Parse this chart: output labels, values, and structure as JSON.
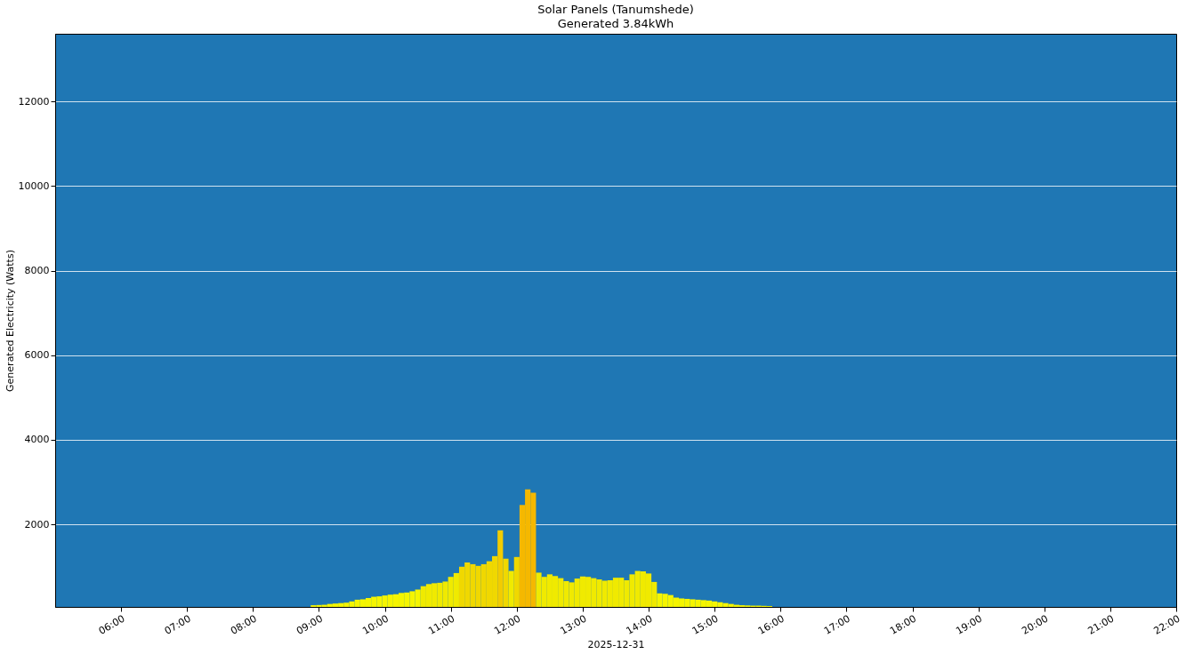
{
  "chart_data": {
    "type": "bar",
    "title": "Solar Panels (Tanumshede)",
    "subtitle": "Generated 3.84kWh",
    "xlabel": "2025-12-31",
    "ylabel": "Generated Electricity (Watts)",
    "x": [
      "2025-12-31T08:55",
      "2025-12-31T09:00",
      "2025-12-31T09:05",
      "2025-12-31T09:10",
      "2025-12-31T09:15",
      "2025-12-31T09:20",
      "2025-12-31T09:25",
      "2025-12-31T09:30",
      "2025-12-31T09:35",
      "2025-12-31T09:40",
      "2025-12-31T09:45",
      "2025-12-31T09:50",
      "2025-12-31T09:55",
      "2025-12-31T10:00",
      "2025-12-31T10:05",
      "2025-12-31T10:10",
      "2025-12-31T10:15",
      "2025-12-31T10:20",
      "2025-12-31T10:25",
      "2025-12-31T10:30",
      "2025-12-31T10:35",
      "2025-12-31T10:40",
      "2025-12-31T10:45",
      "2025-12-31T10:50",
      "2025-12-31T10:55",
      "2025-12-31T11:00",
      "2025-12-31T11:05",
      "2025-12-31T11:10",
      "2025-12-31T11:15",
      "2025-12-31T11:20",
      "2025-12-31T11:25",
      "2025-12-31T11:30",
      "2025-12-31T11:35",
      "2025-12-31T11:40",
      "2025-12-31T11:45",
      "2025-12-31T11:50",
      "2025-12-31T11:55",
      "2025-12-31T12:00",
      "2025-12-31T12:05",
      "2025-12-31T12:10",
      "2025-12-31T12:15",
      "2025-12-31T12:20",
      "2025-12-31T12:25",
      "2025-12-31T12:30",
      "2025-12-31T12:35",
      "2025-12-31T12:40",
      "2025-12-31T12:45",
      "2025-12-31T12:50",
      "2025-12-31T12:55",
      "2025-12-31T13:00",
      "2025-12-31T13:05",
      "2025-12-31T13:10",
      "2025-12-31T13:15",
      "2025-12-31T13:20",
      "2025-12-31T13:25",
      "2025-12-31T13:30",
      "2025-12-31T13:35",
      "2025-12-31T13:40",
      "2025-12-31T13:45",
      "2025-12-31T13:50",
      "2025-12-31T13:55",
      "2025-12-31T14:00",
      "2025-12-31T14:05",
      "2025-12-31T14:10",
      "2025-12-31T14:15",
      "2025-12-31T14:20",
      "2025-12-31T14:25",
      "2025-12-31T14:30",
      "2025-12-31T14:35",
      "2025-12-31T14:40",
      "2025-12-31T14:45",
      "2025-12-31T14:50",
      "2025-12-31T14:55",
      "2025-12-31T15:00",
      "2025-12-31T15:05",
      "2025-12-31T15:10",
      "2025-12-31T15:15",
      "2025-12-31T15:20",
      "2025-12-31T15:25",
      "2025-12-31T15:30",
      "2025-12-31T15:35",
      "2025-12-31T15:40",
      "2025-12-31T15:45",
      "2025-12-31T15:50"
    ],
    "values": [
      90,
      95,
      100,
      120,
      130,
      140,
      150,
      180,
      220,
      230,
      260,
      290,
      300,
      320,
      340,
      350,
      380,
      390,
      420,
      460,
      540,
      590,
      610,
      620,
      650,
      760,
      850,
      1000,
      1100,
      1060,
      1020,
      1060,
      1130,
      1250,
      1860,
      1190,
      900,
      1230,
      2460,
      2830,
      2750,
      860,
      760,
      820,
      780,
      730,
      660,
      630,
      720,
      770,
      760,
      730,
      700,
      670,
      680,
      740,
      740,
      680,
      820,
      900,
      890,
      840,
      640,
      370,
      360,
      330,
      270,
      250,
      240,
      230,
      220,
      210,
      200,
      180,
      160,
      140,
      120,
      100,
      90,
      85,
      80,
      80,
      75,
      70
    ],
    "colors": [
      "#f5f500",
      "#f5f500",
      "#f5f500",
      "#f5f500",
      "#f5f500",
      "#f5f500",
      "#f5f500",
      "#f5f500",
      "#f5f500",
      "#f5f500",
      "#f5f500",
      "#f5f500",
      "#f5f500",
      "#f5f500",
      "#f5f500",
      "#f5f500",
      "#f5f500",
      "#f5f500",
      "#f5f500",
      "#f5f500",
      "#f0ea00",
      "#f0ea00",
      "#f0ea00",
      "#f0ea00",
      "#f0ea00",
      "#f0ea00",
      "#f0ea00",
      "#f0d800",
      "#f0d800",
      "#f0d800",
      "#f0d800",
      "#f0d800",
      "#f0d800",
      "#f0d800",
      "#f2cc00",
      "#f0d800",
      "#f0ea00",
      "#f0d800",
      "#f5b800",
      "#f5b800",
      "#f5b800",
      "#f0ea00",
      "#f0ea00",
      "#f0ea00",
      "#f0ea00",
      "#f0ea00",
      "#f0ea00",
      "#f0ea00",
      "#f0ea00",
      "#f0ea00",
      "#f0ea00",
      "#f0ea00",
      "#f0ea00",
      "#f0ea00",
      "#f0ea00",
      "#f0ea00",
      "#f0ea00",
      "#f0ea00",
      "#f0ea00",
      "#f0ea00",
      "#f0ea00",
      "#f0ea00",
      "#f0ea00",
      "#f5f500",
      "#f5f500",
      "#f5f500",
      "#f5f500",
      "#f5f500",
      "#f5f500",
      "#f5f500",
      "#f5f500",
      "#f5f500",
      "#f5f500",
      "#f5f500",
      "#f5f500",
      "#f5f500",
      "#f5f500",
      "#f5f500",
      "#f5f500",
      "#f5f500",
      "#f5f500",
      "#f5f500",
      "#f5f500",
      "#f5f500"
    ],
    "xlim": [
      "2025-12-31T05:00",
      "2025-12-31T22:00"
    ],
    "xticks": [
      {
        "value": "2025-12-31T06:00",
        "label": "06:00"
      },
      {
        "value": "2025-12-31T07:00",
        "label": "07:00"
      },
      {
        "value": "2025-12-31T08:00",
        "label": "08:00"
      },
      {
        "value": "2025-12-31T09:00",
        "label": "09:00"
      },
      {
        "value": "2025-12-31T10:00",
        "label": "10:00"
      },
      {
        "value": "2025-12-31T11:00",
        "label": "11:00"
      },
      {
        "value": "2025-12-31T12:00",
        "label": "12:00"
      },
      {
        "value": "2025-12-31T13:00",
        "label": "13:00"
      },
      {
        "value": "2025-12-31T14:00",
        "label": "14:00"
      },
      {
        "value": "2025-12-31T15:00",
        "label": "15:00"
      },
      {
        "value": "2025-12-31T16:00",
        "label": "16:00"
      },
      {
        "value": "2025-12-31T17:00",
        "label": "17:00"
      },
      {
        "value": "2025-12-31T18:00",
        "label": "18:00"
      },
      {
        "value": "2025-12-31T19:00",
        "label": "19:00"
      },
      {
        "value": "2025-12-31T20:00",
        "label": "20:00"
      },
      {
        "value": "2025-12-31T21:00",
        "label": "21:00"
      },
      {
        "value": "2025-12-31T22:00",
        "label": "22:00"
      }
    ],
    "ylim": [
      50,
      13600
    ],
    "yticks": [
      2000,
      4000,
      6000,
      8000,
      10000,
      12000
    ],
    "grid": "y",
    "legend": false
  }
}
